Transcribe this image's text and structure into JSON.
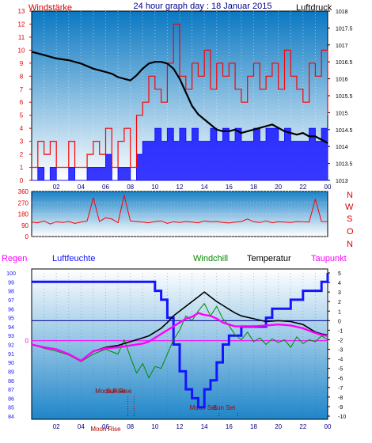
{
  "title": "24 hour graph day : 18 Januar 2015",
  "colors": {
    "bg_top": "#ffffff",
    "bg_bottom": "#1f86c9",
    "wind": "#ff0000",
    "gust_fill": "#1414ff",
    "pressure": "#000000",
    "humidity": "#1414ff",
    "windchill": "#008a00",
    "temperature": "#000000",
    "dewpoint": "#ff00ff",
    "rain": "#ff00ff",
    "sun_moon": "#aa0000"
  },
  "chart_data": [
    {
      "type": "line",
      "title": "",
      "left_label": "Windstärke",
      "right_label": "Luftdruck",
      "x_ticks": [
        "02",
        "04",
        "06",
        "08",
        "10",
        "12",
        "14",
        "16",
        "18",
        "20",
        "22",
        "00"
      ],
      "y_left_ticks": [
        "0",
        "1",
        "2",
        "3",
        "4",
        "5",
        "6",
        "7",
        "8",
        "9",
        "10",
        "11",
        "12",
        "13"
      ],
      "y_right_ticks": [
        "1013",
        "1013.5",
        "1014",
        "1014.5",
        "1015",
        "1015.5",
        "1016",
        "1016.5",
        "1017",
        "1017.5",
        "1018"
      ],
      "ylim_left": [
        0,
        13
      ],
      "ylim_right": [
        1013,
        1018
      ],
      "series": [
        {
          "kind": "pressure",
          "axis": "right",
          "x": [
            0,
            1,
            2,
            3,
            3.5,
            4,
            5,
            6,
            6.5,
            7,
            8,
            8.5,
            9,
            9.5,
            10,
            10.5,
            11,
            11.5,
            12,
            12.5,
            13,
            13.5,
            14,
            14.5,
            15,
            15.5,
            16,
            16.5,
            17,
            17.5,
            18,
            18.5,
            19,
            19.5,
            20,
            20.5,
            21,
            21.5,
            22,
            22.5,
            23,
            23.5,
            24
          ],
          "y": [
            1016.8,
            1016.7,
            1016.6,
            1016.55,
            1016.5,
            1016.45,
            1016.3,
            1016.2,
            1016.15,
            1016.05,
            1015.95,
            1016.1,
            1016.3,
            1016.45,
            1016.5,
            1016.5,
            1016.45,
            1016.3,
            1016.0,
            1015.6,
            1015.2,
            1014.95,
            1014.8,
            1014.65,
            1014.5,
            1014.45,
            1014.45,
            1014.5,
            1014.4,
            1014.45,
            1014.5,
            1014.55,
            1014.6,
            1014.65,
            1014.55,
            1014.45,
            1014.4,
            1014.35,
            1014.4,
            1014.3,
            1014.3,
            1014.2,
            1014.1
          ]
        },
        {
          "kind": "wind_gust",
          "axis": "left",
          "x": [
            0,
            0.5,
            1,
            1.5,
            2,
            2.5,
            3,
            3.5,
            4,
            4.5,
            5,
            5.5,
            6,
            6.5,
            7,
            7.5,
            8,
            8.5,
            9,
            9.5,
            10,
            10.5,
            11,
            11.5,
            12,
            12.5,
            13,
            13.5,
            14,
            14.5,
            15,
            15.5,
            16,
            16.5,
            17,
            17.5,
            18,
            18.5,
            19,
            19.5,
            20,
            20.5,
            21,
            21.5,
            22,
            22.5,
            23,
            23.5,
            24
          ],
          "y": [
            1,
            3,
            2,
            3,
            1,
            1,
            3,
            1,
            1,
            2,
            3,
            2,
            4,
            1,
            3,
            4,
            1,
            5,
            6,
            8,
            7,
            6,
            9,
            12,
            8,
            7,
            9,
            8,
            10,
            7,
            9,
            8,
            9,
            7,
            6,
            8,
            9,
            7,
            8,
            9,
            7,
            10,
            8,
            7,
            6,
            9,
            8,
            10,
            5
          ]
        },
        {
          "kind": "wind_avg",
          "axis": "left",
          "x": [
            0,
            0.5,
            1,
            1.5,
            2,
            2.5,
            3,
            3.5,
            4,
            4.5,
            5,
            5.5,
            6,
            6.5,
            7,
            7.5,
            8,
            8.5,
            9,
            9.5,
            10,
            10.5,
            11,
            11.5,
            12,
            12.5,
            13,
            13.5,
            14,
            14.5,
            15,
            15.5,
            16,
            16.5,
            17,
            17.5,
            18,
            18.5,
            19,
            19.5,
            20,
            20.5,
            21,
            21.5,
            22,
            22.5,
            23,
            23.5,
            24
          ],
          "y": [
            0,
            1,
            0,
            1,
            0,
            0,
            1,
            0,
            0,
            1,
            1,
            1,
            2,
            0,
            1,
            1,
            0,
            2,
            3,
            3,
            4,
            3,
            4,
            3,
            4,
            3,
            4,
            3,
            3,
            4,
            3,
            4,
            3,
            4,
            3,
            3,
            4,
            3,
            4,
            4,
            3,
            4,
            3,
            3,
            3,
            4,
            3,
            4,
            2
          ]
        }
      ]
    },
    {
      "type": "line",
      "title": "",
      "y_ticks": [
        "0",
        "90",
        "180",
        "270",
        "360"
      ],
      "ylim": [
        0,
        360
      ],
      "compass": [
        "N",
        "W",
        "S",
        "O",
        "N"
      ],
      "series": [
        {
          "kind": "wind_direction",
          "x": [
            0,
            0.5,
            1,
            1.5,
            2,
            2.5,
            3,
            3.5,
            4,
            4.5,
            5,
            5.5,
            6,
            6.5,
            7,
            7.5,
            8,
            8.5,
            9,
            9.5,
            10,
            10.5,
            11,
            11.5,
            12,
            12.5,
            13,
            13.5,
            14,
            14.5,
            15,
            15.5,
            16,
            16.5,
            17,
            17.5,
            18,
            18.5,
            19,
            19.5,
            20,
            20.5,
            21,
            21.5,
            22,
            22.5,
            23,
            23.5,
            24
          ],
          "y": [
            115,
            110,
            125,
            100,
            118,
            112,
            120,
            105,
            115,
            125,
            310,
            120,
            150,
            140,
            110,
            330,
            125,
            120,
            115,
            110,
            120,
            125,
            105,
            118,
            112,
            120,
            115,
            110,
            125,
            118,
            120,
            112,
            108,
            115,
            120,
            140,
            118,
            112,
            125,
            110,
            118,
            115,
            112,
            120,
            118,
            115,
            300,
            120,
            118
          ]
        }
      ]
    },
    {
      "type": "line",
      "title": "",
      "labels": {
        "rain": "Regen",
        "humidity": "Luftfeuchte",
        "windchill": "Windchill",
        "temperature": "Temperatur",
        "dewpoint": "Taupunkt"
      },
      "x_ticks": [
        "02",
        "04",
        "06",
        "08",
        "10",
        "12",
        "14",
        "16",
        "18",
        "20",
        "22",
        "00"
      ],
      "y_humidity_ticks": [
        "84",
        "85",
        "86",
        "87",
        "88",
        "89",
        "90",
        "91",
        "92",
        "93",
        "94",
        "95",
        "96",
        "97",
        "98",
        "99",
        "100"
      ],
      "y_temp_ticks": [
        "-10",
        "-9",
        "-8",
        "-7",
        "-6",
        "-5",
        "-4",
        "-3",
        "-2",
        "-1",
        "0",
        "1",
        "2",
        "3",
        "4",
        "5"
      ],
      "rain_tick": "0",
      "ylim_humidity": [
        84,
        100
      ],
      "ylim_temp": [
        -10,
        5
      ],
      "events": [
        {
          "label": "Sun Rise",
          "hour": 8.3
        },
        {
          "label": "Sun Set",
          "hour": 16.7
        },
        {
          "label": "Moon Rise",
          "hour": 7.8
        },
        {
          "label": "Moon Set",
          "hour": 15.2
        },
        {
          "label": "Moon Rise",
          "hour": 6.0
        }
      ],
      "series": [
        {
          "kind": "humidity",
          "x": [
            0,
            9.5,
            10,
            10.5,
            11,
            11.5,
            12,
            12.5,
            13,
            13.5,
            14,
            14.5,
            15,
            15.5,
            16,
            17,
            18,
            19,
            19.5,
            20,
            20.5,
            21,
            21.5,
            22,
            22.5,
            23,
            23.5,
            24
          ],
          "y": [
            99,
            99,
            98,
            97,
            95,
            92,
            89,
            87,
            86,
            85,
            87,
            88,
            90,
            92,
            93,
            94,
            94,
            95,
            96,
            96,
            96,
            97,
            97,
            98,
            98,
            98,
            99,
            100
          ]
        },
        {
          "kind": "temperature",
          "x": [
            0,
            1,
            2,
            3,
            4,
            5,
            6,
            7,
            8,
            9,
            9.5,
            10,
            10.5,
            11,
            11.5,
            12,
            12.5,
            13,
            13.5,
            14,
            14.5,
            15,
            15.5,
            16,
            16.5,
            17,
            18,
            19,
            20,
            21,
            22,
            23,
            23.5,
            24
          ],
          "y": [
            -2.5,
            -2.8,
            -3.0,
            -3.5,
            -4.2,
            -3.2,
            -2.8,
            -2.6,
            -2.2,
            -1.8,
            -1.6,
            -1.2,
            -0.8,
            -0.2,
            0.5,
            1.0,
            1.5,
            2.0,
            2.5,
            3.0,
            2.5,
            2.0,
            1.6,
            1.2,
            0.8,
            0.5,
            0.2,
            -0.1,
            0.0,
            -0.1,
            -0.4,
            -1.2,
            -1.4,
            -1.5
          ]
        },
        {
          "kind": "dewpoint",
          "x": [
            0,
            1,
            2,
            3,
            4,
            5,
            6,
            7,
            8,
            9,
            9.5,
            10,
            10.5,
            11,
            11.5,
            12,
            12.5,
            13,
            13.5,
            14,
            14.5,
            15,
            15.5,
            16,
            16.5,
            17,
            18,
            19,
            20,
            21,
            22,
            23,
            23.5,
            24
          ],
          "y": [
            -2.5,
            -2.8,
            -3.0,
            -3.5,
            -4.2,
            -3.2,
            -2.9,
            -2.8,
            -2.6,
            -2.4,
            -2.2,
            -1.8,
            -1.4,
            -1.0,
            -0.6,
            -0.2,
            0.2,
            0.4,
            0.8,
            0.6,
            0.5,
            0.2,
            -0.2,
            -0.4,
            -0.6,
            -0.6,
            -0.6,
            -0.5,
            -0.4,
            -0.5,
            -0.8,
            -1.3,
            -1.5,
            -1.6
          ]
        },
        {
          "kind": "windchill",
          "x": [
            0,
            1,
            2,
            3,
            4,
            5,
            6,
            7,
            7.5,
            8,
            8.5,
            9,
            9.5,
            10,
            10.5,
            11,
            11.5,
            12,
            12.5,
            13,
            13.5,
            14,
            14.5,
            15,
            15.5,
            16,
            16.5,
            17,
            17.5,
            18,
            18.5,
            19,
            19.5,
            20,
            20.5,
            21,
            21.5,
            22,
            22.5,
            23,
            23.5,
            24
          ],
          "y": [
            -2.5,
            -2.9,
            -3.2,
            -3.6,
            -4.3,
            -3.5,
            -3.0,
            -3.5,
            -2.0,
            -3.8,
            -5.5,
            -4.5,
            -6.0,
            -4.8,
            -5.0,
            -3.5,
            -2.0,
            -1.0,
            0.5,
            0.0,
            1.0,
            1.8,
            0.5,
            1.5,
            0.2,
            -0.5,
            -1.5,
            -2.0,
            -1.2,
            -2.2,
            -1.8,
            -2.5,
            -1.9,
            -2.3,
            -2.0,
            -2.8,
            -1.7,
            -2.4,
            -2.0,
            -2.2,
            -1.6,
            -2.0
          ]
        }
      ]
    }
  ]
}
